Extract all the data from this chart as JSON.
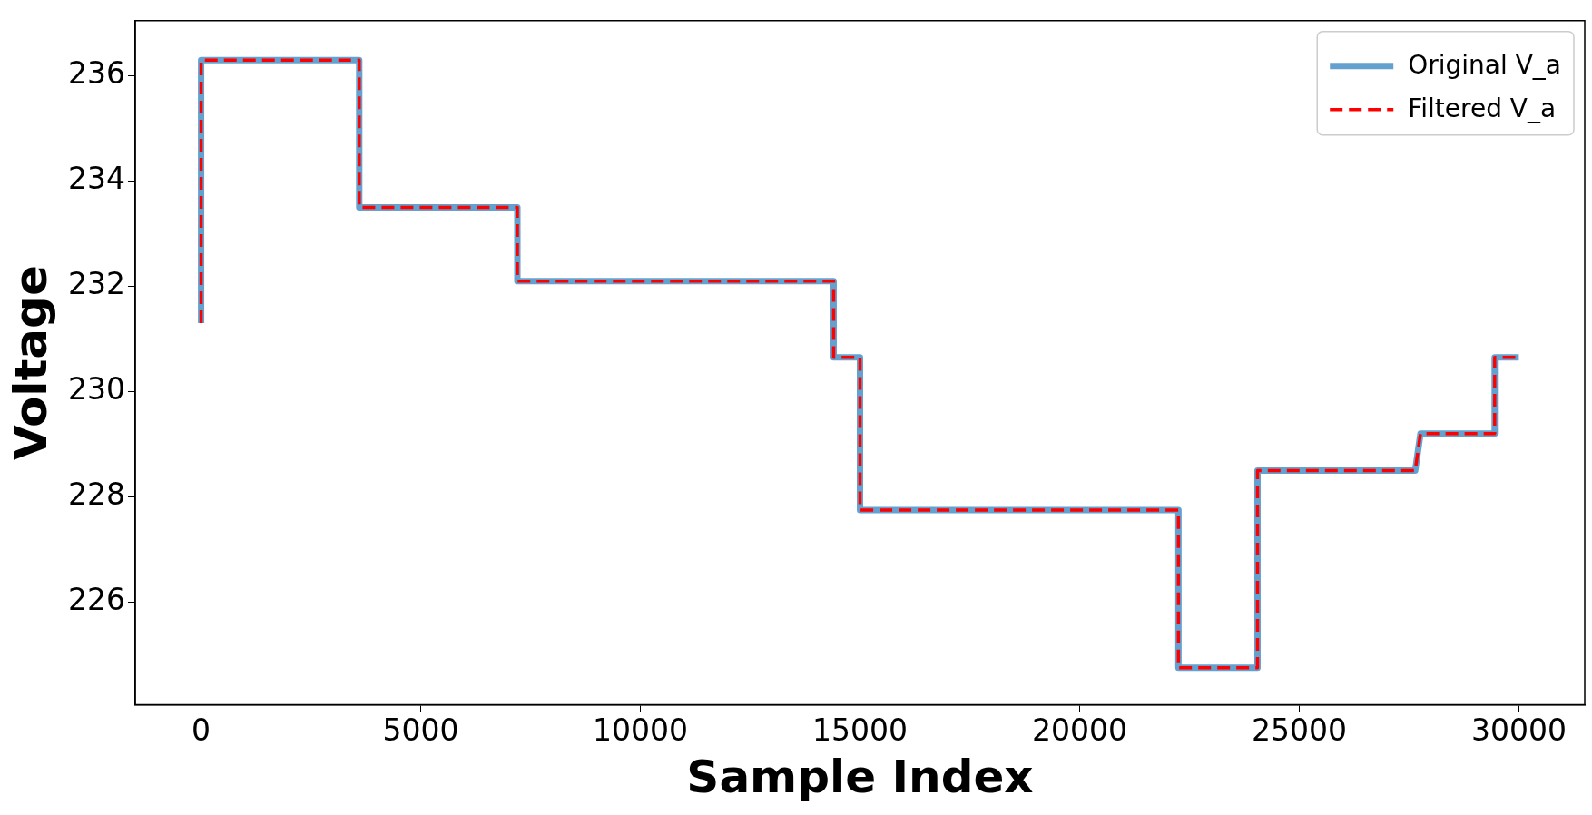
{
  "chart_data": {
    "type": "line",
    "xlabel": "Sample Index",
    "ylabel": "Voltage",
    "xlim": [
      -1500,
      31500
    ],
    "xticks": [
      0,
      5000,
      10000,
      15000,
      20000,
      25000,
      30000
    ],
    "ylim": [
      224.05,
      237.05
    ],
    "yticks": [
      226,
      228,
      230,
      232,
      234,
      236
    ],
    "grid": false,
    "legend": "top right",
    "x": [
      0,
      0,
      3600,
      3600,
      7200,
      7200,
      14400,
      14400,
      15000,
      15000,
      22250,
      22250,
      24050,
      24050,
      27640,
      27760,
      29450,
      29450,
      30000
    ],
    "series": [
      {
        "name": "Original V_a",
        "color": "#64a1cf",
        "line_style": "solid",
        "values": [
          231.3,
          236.3,
          236.3,
          233.5,
          233.5,
          232.1,
          232.1,
          230.65,
          230.65,
          227.75,
          227.75,
          224.75,
          224.75,
          228.5,
          228.5,
          229.2,
          229.2,
          230.65,
          230.65
        ]
      },
      {
        "name": "Filtered V_a",
        "color": "#ff0000",
        "line_style": "dashed",
        "values": [
          231.3,
          236.3,
          236.3,
          233.5,
          233.5,
          232.1,
          232.1,
          230.65,
          230.65,
          227.75,
          227.75,
          224.75,
          224.75,
          228.5,
          228.5,
          229.2,
          229.2,
          230.65,
          230.65
        ]
      }
    ]
  }
}
